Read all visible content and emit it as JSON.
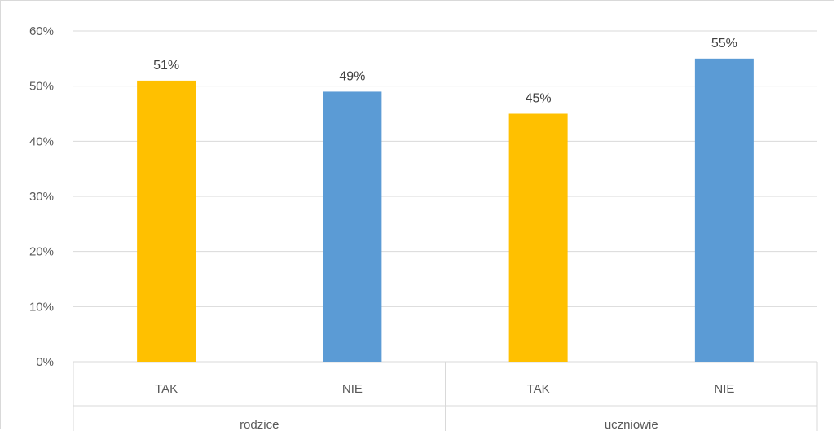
{
  "chart_data": {
    "type": "bar",
    "groups": [
      "rodzice",
      "uczniowie"
    ],
    "categories": [
      "TAK",
      "NIE",
      "TAK",
      "NIE"
    ],
    "values": [
      51,
      49,
      45,
      55
    ],
    "data_labels": [
      "51%",
      "49%",
      "45%",
      "55%"
    ],
    "colors": [
      "#FFC000",
      "#5B9BD5",
      "#FFC000",
      "#5B9BD5"
    ],
    "ylim": [
      0,
      60
    ],
    "yticks": [
      0,
      10,
      20,
      30,
      40,
      50,
      60
    ],
    "ytick_labels": [
      "0%",
      "10%",
      "20%",
      "30%",
      "40%",
      "50%",
      "60%"
    ],
    "grid": true,
    "legend": "none"
  }
}
